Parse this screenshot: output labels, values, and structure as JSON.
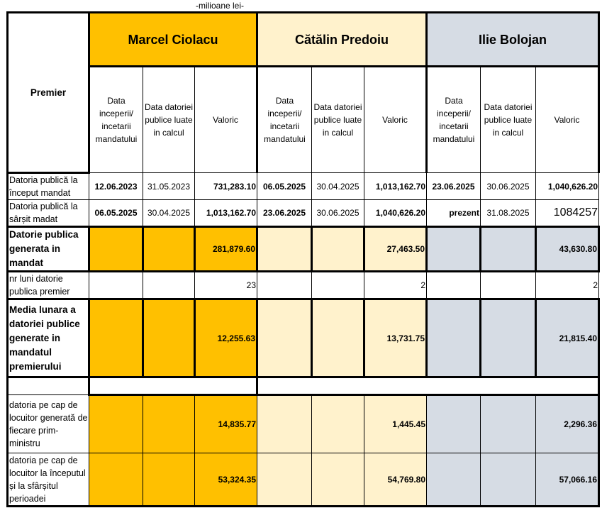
{
  "caption": "-milioane lei-",
  "header": {
    "premier_label": "Premier",
    "premiers": [
      "Marcel Ciolacu",
      "Cătălin Predoiu",
      "Ilie Bolojan"
    ],
    "subcols": [
      "Data inceperii/ incetarii mandatului",
      "Data datoriei publice luate in calcul",
      "Valoric"
    ]
  },
  "colors": {
    "ciolacu": "#FFC000",
    "predoiu": "#FFF2CC",
    "bolojan": "#D6DCE4"
  },
  "rows": [
    {
      "label": "Datoria publică la început mandat",
      "cells": [
        "12.06.2023",
        "31.05.2023",
        "731,283.10",
        "06.05.2025",
        "30.04.2025",
        "1,013,162.70",
        "23.06.2025",
        "30.06.2025",
        "1,040,626.20"
      ]
    },
    {
      "label": "Datoria publică la sârșit madat",
      "cells": [
        "06.05.2025",
        "30.04.2025",
        "1,013,162.70",
        "23.06.2025",
        "30.06.2025",
        "1,040,626.20",
        "prezent",
        "31.08.2025",
        "1084257"
      ]
    },
    {
      "label": "Datorie publica generata in mandat",
      "values": [
        "281,879.60",
        "27,463.50",
        "43,630.80"
      ]
    },
    {
      "label": "nr luni datorie publica  premier",
      "values": [
        "23",
        "2",
        "2"
      ]
    },
    {
      "label": "Media lunara  a datoriei publice generate in mandatul premierului",
      "values": [
        "12,255.63",
        "13,731.75",
        "21,815.40"
      ]
    },
    {
      "label": "datoria pe cap de locuitor generată de fiecare prim-ministru",
      "values": [
        "14,835.77",
        "1,445.45",
        "2,296.36"
      ]
    },
    {
      "label": "datoria pe cap de locuitor la începutul și la sfârșitul perioadei",
      "values": [
        "53,324.35",
        "54,769.80",
        "57,066.16"
      ]
    }
  ]
}
